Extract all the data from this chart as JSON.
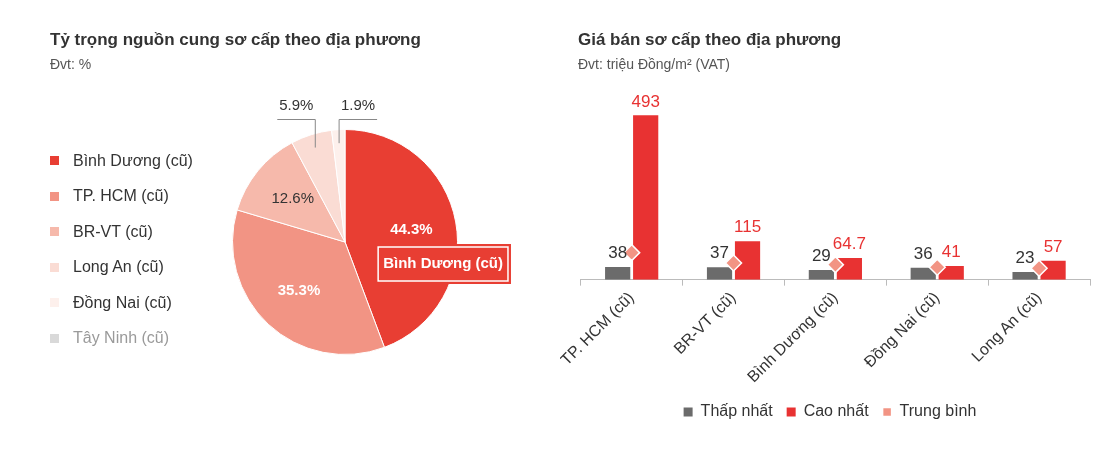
{
  "chart_data": [
    {
      "type": "pie",
      "title": "Tỷ trọng nguồn cung sơ cấp theo địa phương",
      "subtitle": "Đvt: %",
      "categories": [
        "Bình Dương (cũ)",
        "TP. HCM (cũ)",
        "BR-VT (cũ)",
        "Long An (cũ)",
        "Đồng Nai (cũ)",
        "Tây Ninh (cũ)"
      ],
      "values": [
        44.3,
        35.3,
        12.6,
        5.9,
        1.9,
        null
      ],
      "colors": [
        "#e83e33",
        "#f29484",
        "#f6b9ab",
        "#fadcd4",
        "#fdf0ec",
        "#d9d9d9"
      ],
      "value_labels": [
        "44.3%",
        "35.3%",
        "12.6%",
        "5.9%",
        "1.9%",
        null
      ],
      "legend": "left",
      "annotations": [
        {
          "text": "Bình Dương (cũ)",
          "x": "Bình Dương (cũ)"
        }
      ]
    },
    {
      "type": "bar",
      "title": "Giá bán sơ cấp theo địa phương",
      "subtitle": "Đvt: triệu Đồng/m² (VAT)",
      "categories": [
        "TP. HCM (cũ)",
        "BR-VT (cũ)",
        "Bình Dương (cũ)",
        "Đồng Nai (cũ)",
        "Long An (cũ)"
      ],
      "legend": "bottom",
      "series": [
        {
          "name": "Thấp nhất",
          "color": "#6b6b6b",
          "values": [
            38,
            37,
            29,
            36,
            23
          ],
          "value_labels": [
            "38",
            "37",
            "29",
            "36",
            "23"
          ]
        },
        {
          "name": "Cao nhất",
          "color": "#e83232",
          "values": [
            493,
            115,
            64.7,
            41,
            57
          ],
          "value_labels": [
            "493",
            "115",
            "64.7",
            "41",
            "57"
          ]
        },
        {
          "name": "Trung bình",
          "type": "scatter",
          "marker": "diamond",
          "color": "#f29484",
          "x": [
            "TP. HCM (cũ)",
            "BR-VT (cũ)",
            "Bình Dương (cũ)",
            "Đồng Nai (cũ)",
            "Long An (cũ)"
          ],
          "values": [
            81,
            50,
            45,
            37,
            34
          ]
        }
      ]
    }
  ]
}
